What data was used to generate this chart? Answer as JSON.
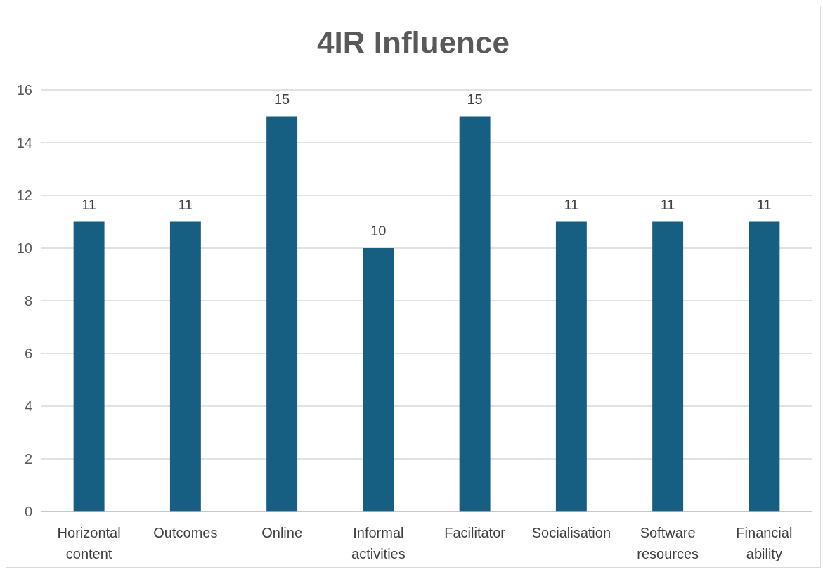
{
  "chart_data": {
    "type": "bar",
    "title": "4IR Influence",
    "categories": [
      "Horizontal content",
      "Outcomes",
      "Online",
      "Informal activities",
      "Facilitator",
      "Socialisation",
      "Software resources",
      "Financial ability"
    ],
    "values": [
      11,
      11,
      15,
      10,
      15,
      11,
      11,
      11
    ],
    "color": "#175f82",
    "ylim": [
      0,
      16
    ],
    "yticks": [
      0,
      2,
      4,
      6,
      8,
      10,
      12,
      14,
      16
    ],
    "grid": "y",
    "data_labels": true
  }
}
